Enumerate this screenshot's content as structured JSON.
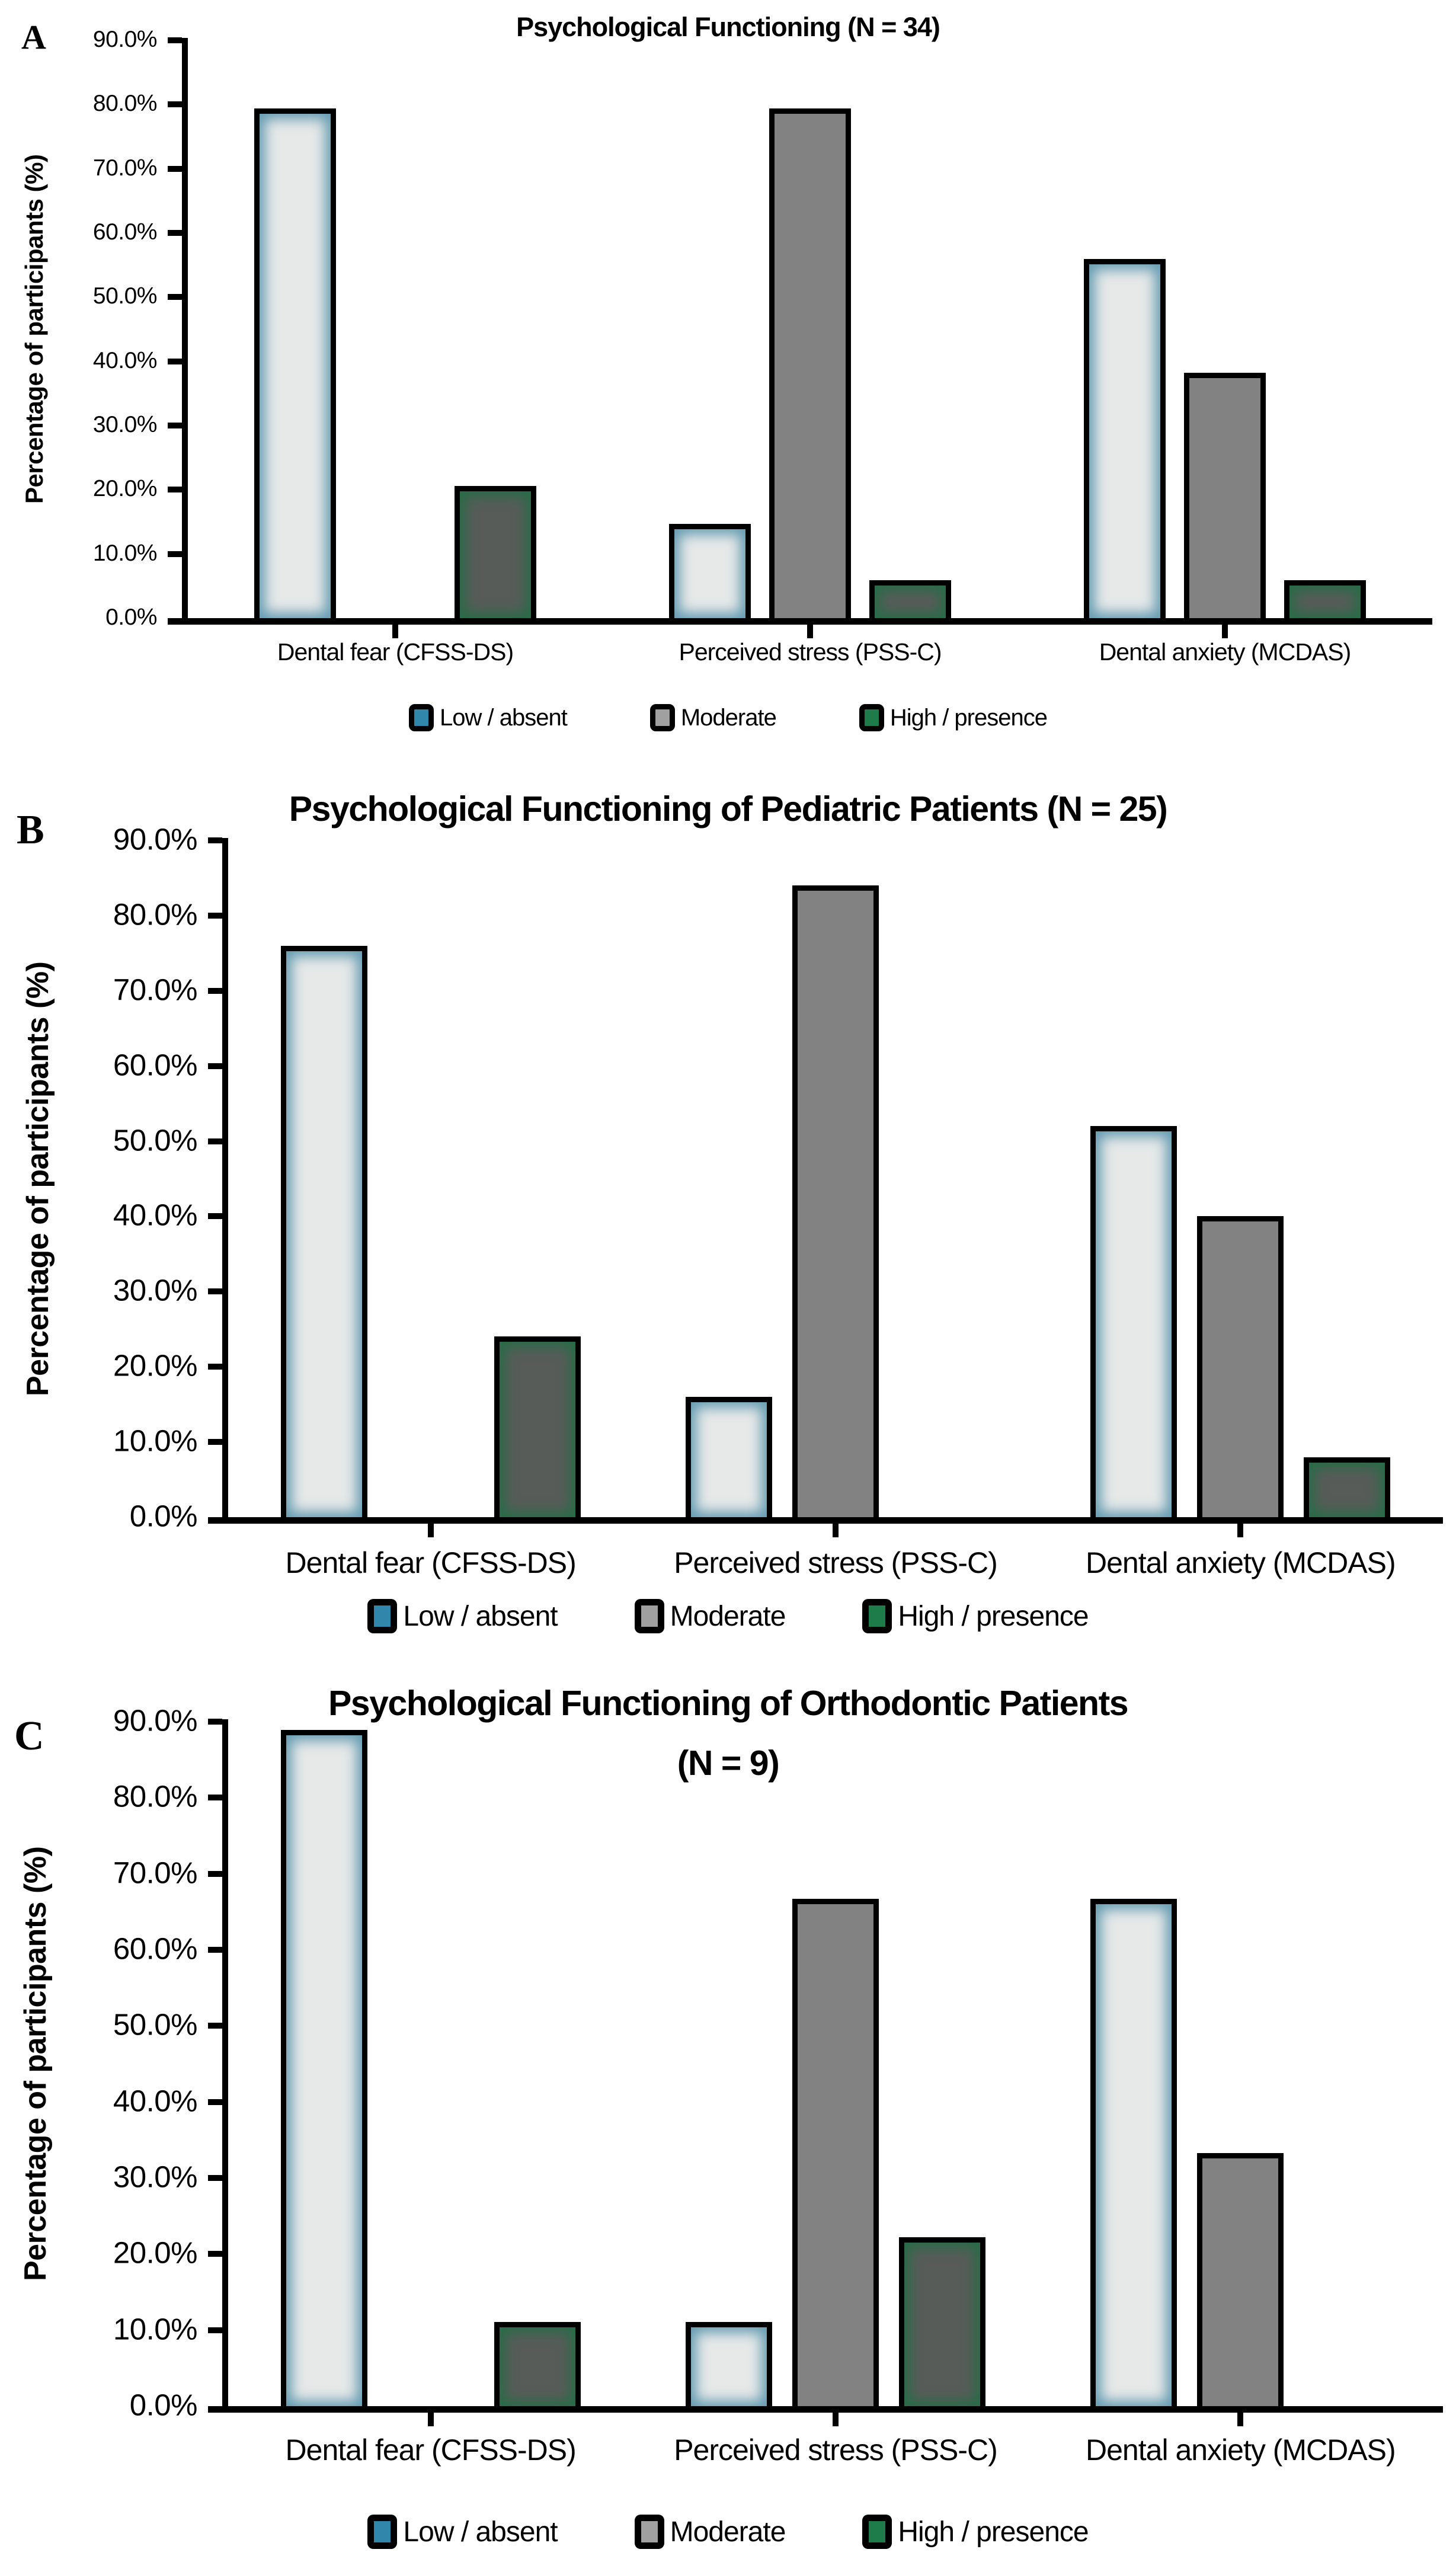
{
  "page": {
    "background": "#ffffff"
  },
  "axis": {
    "ylabel": "Percentage of participants (%)",
    "ymin": 0,
    "ymax": 90,
    "step": 10,
    "tick_labels": [
      "0.0%",
      "10.0%",
      "20.0%",
      "30.0%",
      "40.0%",
      "50.0%",
      "60.0%",
      "70.0%",
      "80.0%",
      "90.0%"
    ]
  },
  "legend": {
    "items": [
      {
        "label": "Low / absent",
        "style": "low",
        "color": "#3187ab"
      },
      {
        "label": "Moderate",
        "style": "moderate",
        "color": "#a0a0a0"
      },
      {
        "label": "High / presence",
        "style": "high",
        "color": "#1e7c4a"
      }
    ]
  },
  "colors": {
    "axis": "#000000",
    "low_bar_fill": "#e7e9e9",
    "low_bar_glow": "#3e84a0",
    "moderate_bar_fill": "#828282",
    "high_bar_fill": "#585c59",
    "high_bar_glow": "#1e6e44"
  },
  "chart_data": [
    {
      "type": "bar",
      "panel_label": "A",
      "title": "Psychological Functioning (N = 34)",
      "subtitle": "",
      "xlabel": "",
      "ylabel": "Percentage of participants (%)",
      "ylim": [
        0,
        90
      ],
      "grid": false,
      "legend_position": "bottom",
      "categories": [
        "Dental fear (CFSS-DS)",
        "Perceived stress (PSS-C)",
        "Dental anxiety (MCDAS)"
      ],
      "series": [
        {
          "name": "Low / absent",
          "style": "low",
          "values": [
            79.4,
            14.7,
            55.9
          ]
        },
        {
          "name": "Moderate",
          "style": "moderate",
          "values": [
            0,
            79.4,
            38.2
          ]
        },
        {
          "name": "High / presence",
          "style": "high",
          "values": [
            20.6,
            5.9,
            5.9
          ]
        }
      ]
    },
    {
      "type": "bar",
      "panel_label": "B",
      "title": "Psychological Functioning of Pediatric Patients (N = 25)",
      "subtitle": "",
      "xlabel": "",
      "ylabel": "Percentage of participants (%)",
      "ylim": [
        0,
        90
      ],
      "grid": false,
      "legend_position": "bottom",
      "categories": [
        "Dental fear (CFSS-DS)",
        "Perceived stress (PSS-C)",
        "Dental anxiety (MCDAS)"
      ],
      "series": [
        {
          "name": "Low / absent",
          "style": "low",
          "values": [
            76,
            16,
            52
          ]
        },
        {
          "name": "Moderate",
          "style": "moderate",
          "values": [
            0,
            84,
            40
          ]
        },
        {
          "name": "High / presence",
          "style": "high",
          "values": [
            24,
            0,
            8
          ]
        }
      ]
    },
    {
      "type": "bar",
      "panel_label": "C",
      "title": "Psychological Functioning of Orthodontic Patients",
      "subtitle": "(N = 9)",
      "xlabel": "",
      "ylabel": "Percentage of participants (%)",
      "ylim": [
        0,
        90
      ],
      "grid": false,
      "legend_position": "bottom",
      "categories": [
        "Dental fear (CFSS-DS)",
        "Perceived stress (PSS-C)",
        "Dental anxiety (MCDAS)"
      ],
      "series": [
        {
          "name": "Low / absent",
          "style": "low",
          "values": [
            88.9,
            11.1,
            66.7
          ]
        },
        {
          "name": "Moderate",
          "style": "moderate",
          "values": [
            0,
            66.7,
            33.3
          ]
        },
        {
          "name": "High / presence",
          "style": "high",
          "values": [
            11.1,
            22.2,
            0
          ]
        }
      ]
    }
  ]
}
